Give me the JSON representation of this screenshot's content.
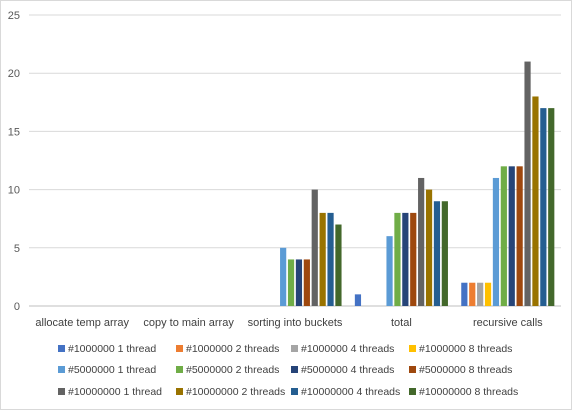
{
  "chart_data": {
    "type": "bar",
    "categories": [
      "allocate temp array",
      "copy to main array",
      "sorting into buckets",
      "total",
      "recursive calls"
    ],
    "ylim": [
      0,
      25
    ],
    "yticks": [
      0,
      5,
      10,
      15,
      20,
      25
    ],
    "grid": true,
    "legend_position": "bottom",
    "series": [
      {
        "name": "#1000000 1 thread",
        "color": "#4472c4",
        "values": [
          0,
          0,
          0,
          1,
          2
        ]
      },
      {
        "name": "#1000000 2 threads",
        "color": "#ed7d31",
        "values": [
          0,
          0,
          0,
          0,
          2
        ]
      },
      {
        "name": "#1000000 4 threads",
        "color": "#a5a5a5",
        "values": [
          0,
          0,
          0,
          0,
          2
        ]
      },
      {
        "name": "#1000000 8 threads",
        "color": "#ffc000",
        "values": [
          0,
          0,
          0,
          0,
          2
        ]
      },
      {
        "name": "#5000000 1 thread",
        "color": "#5b9bd5",
        "values": [
          0,
          0,
          5,
          6,
          11
        ]
      },
      {
        "name": "#5000000 2 threads",
        "color": "#70ad47",
        "values": [
          0,
          0,
          4,
          8,
          12
        ]
      },
      {
        "name": "#5000000 4 threads",
        "color": "#264478",
        "values": [
          0,
          0,
          4,
          8,
          12
        ]
      },
      {
        "name": "#5000000 8 threads",
        "color": "#9e480e",
        "values": [
          0,
          0,
          4,
          8,
          12
        ]
      },
      {
        "name": "#10000000 1 thread",
        "color": "#636363",
        "values": [
          0,
          0,
          10,
          11,
          21
        ]
      },
      {
        "name": "#10000000 2 threads",
        "color": "#997300",
        "values": [
          0,
          0,
          8,
          10,
          18
        ]
      },
      {
        "name": "#10000000 4 threads",
        "color": "#255e91",
        "values": [
          0,
          0,
          8,
          9,
          17
        ]
      },
      {
        "name": "#10000000 8 threads",
        "color": "#43682b",
        "values": [
          0,
          0,
          7,
          9,
          17
        ]
      }
    ]
  }
}
